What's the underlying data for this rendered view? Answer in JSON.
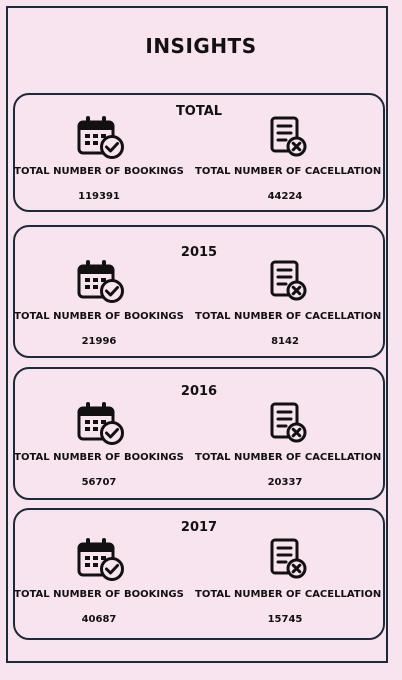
{
  "title": "INSIGHTS",
  "bookings_label": "TOTAL NUMBER OF BOOKINGS",
  "cancellation_label": "TOTAL NUMBER OF CACELLATION",
  "icons": {
    "bookings": "calendar-check-icon",
    "cancellation": "document-x-icon"
  },
  "colors": {
    "background": "#f8e4ee",
    "border": "#1c2b3a"
  },
  "cards": [
    {
      "label": "TOTAL",
      "bookings": "119391",
      "cancellations": "44224"
    },
    {
      "label": "2015",
      "bookings": "21996",
      "cancellations": "8142"
    },
    {
      "label": "2016",
      "bookings": "56707",
      "cancellations": "20337"
    },
    {
      "label": "2017",
      "bookings": "40687",
      "cancellations": "15745"
    }
  ]
}
